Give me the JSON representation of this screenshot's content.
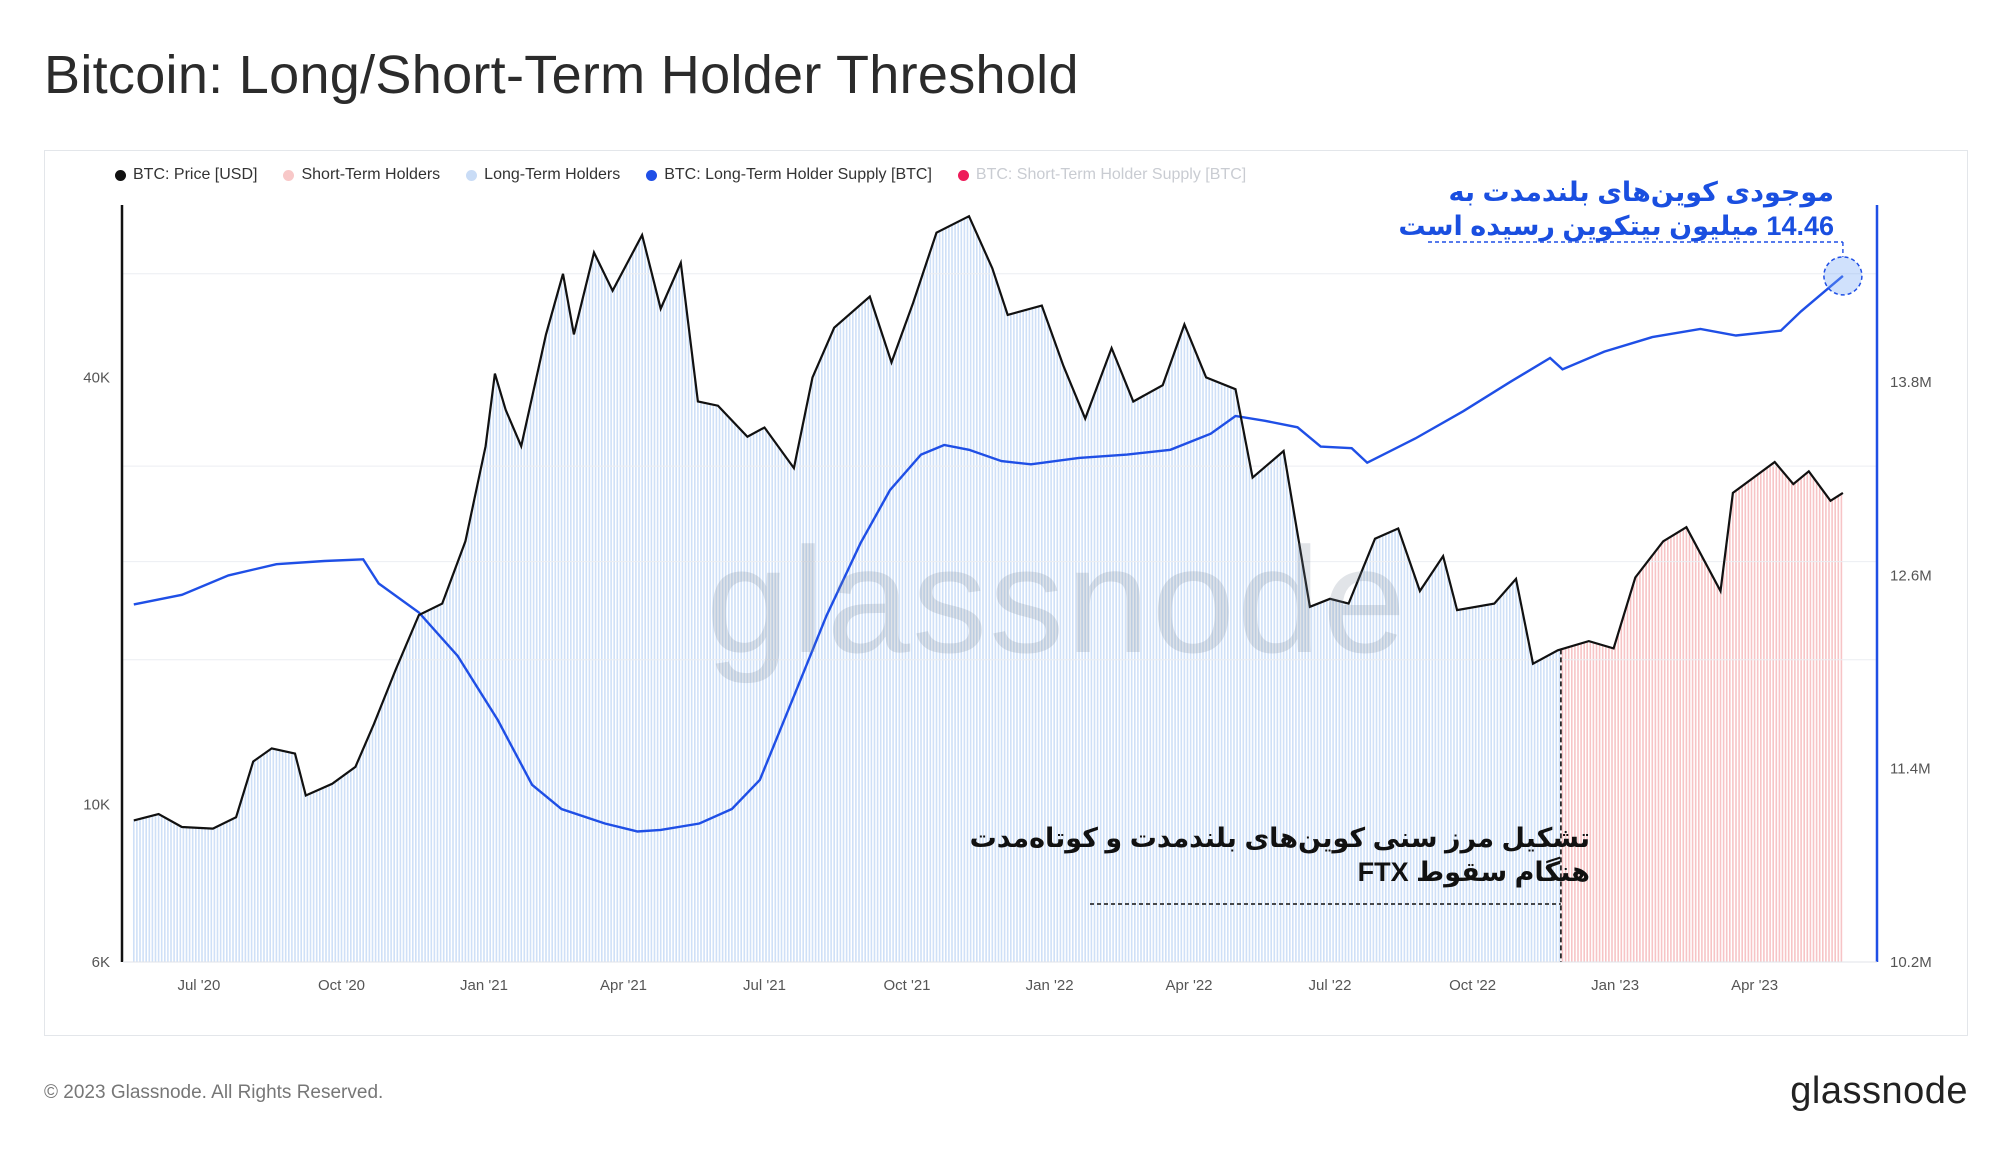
{
  "title": "Bitcoin: Long/Short-Term Holder Threshold",
  "legend": [
    {
      "label": "BTC: Price [USD]",
      "color": "#111111",
      "muted": false
    },
    {
      "label": "Short-Term Holders",
      "color": "#f8c8c8",
      "muted": false
    },
    {
      "label": "Long-Term Holders",
      "color": "#c9dcf6",
      "muted": false
    },
    {
      "label": "BTC: Long-Term Holder Supply [BTC]",
      "color": "#1f4fe6",
      "muted": false
    },
    {
      "label": "BTC: Short-Term Holder Supply [BTC]",
      "color": "#ee1c5a",
      "muted": true
    }
  ],
  "annotations": {
    "ltm_line1": "موجودی کوین‌های بلندمدت به",
    "ltm_line2": "14.46 میلیون بیتکوین رسیده است",
    "ftx_line1": "تشکیل مرز سنی کوین‌های بلندمدت و کوتاه‌مدت",
    "ftx_line2": "هنگام سقوط FTX"
  },
  "watermark": "glassnode",
  "footer": {
    "copyright": "© 2023 Glassnode. All Rights Reserved.",
    "logo": "glassnode"
  },
  "chart_data": {
    "type": "line",
    "x_tick_labels": [
      "Jul '20",
      "Oct '20",
      "Jan '21",
      "Apr '21",
      "Jul '21",
      "Oct '21",
      "Jan '22",
      "Apr '22",
      "Jul '22",
      "Oct '22",
      "Jan '23",
      "Apr '23"
    ],
    "y_left": {
      "scale": "log",
      "range": [
        6000,
        70000
      ],
      "ticks": [
        {
          "value": 6000,
          "label": "6K"
        },
        {
          "value": 10000,
          "label": "10K"
        },
        {
          "value": 40000,
          "label": "40K"
        }
      ]
    },
    "y_right": {
      "scale": "linear",
      "range": [
        10200000,
        14900000
      ],
      "ticks": [
        {
          "value": 10200000,
          "label": "10.2M"
        },
        {
          "value": 11400000,
          "label": "11.4M"
        },
        {
          "value": 12600000,
          "label": "12.6M"
        },
        {
          "value": 13800000,
          "label": "13.8M"
        }
      ]
    },
    "threshold_date": "2022-11-27",
    "series": [
      {
        "name": "BTC: Price [USD]",
        "axis": "left",
        "color": "#111111",
        "points": [
          [
            "2020-05-20",
            9500
          ],
          [
            "2020-06-05",
            9700
          ],
          [
            "2020-06-20",
            9300
          ],
          [
            "2020-07-10",
            9250
          ],
          [
            "2020-07-25",
            9600
          ],
          [
            "2020-08-05",
            11500
          ],
          [
            "2020-08-17",
            12000
          ],
          [
            "2020-09-01",
            11800
          ],
          [
            "2020-09-08",
            10300
          ],
          [
            "2020-09-25",
            10700
          ],
          [
            "2020-10-10",
            11300
          ],
          [
            "2020-10-22",
            13000
          ],
          [
            "2020-11-05",
            15500
          ],
          [
            "2020-11-20",
            18500
          ],
          [
            "2020-12-05",
            19200
          ],
          [
            "2020-12-20",
            23500
          ],
          [
            "2021-01-02",
            32000
          ],
          [
            "2021-01-08",
            40500
          ],
          [
            "2021-01-15",
            36000
          ],
          [
            "2021-01-25",
            32000
          ],
          [
            "2021-02-10",
            46000
          ],
          [
            "2021-02-21",
            56000
          ],
          [
            "2021-02-28",
            46000
          ],
          [
            "2021-03-13",
            60000
          ],
          [
            "2021-03-25",
            53000
          ],
          [
            "2021-04-13",
            63500
          ],
          [
            "2021-04-25",
            50000
          ],
          [
            "2021-05-08",
            58000
          ],
          [
            "2021-05-19",
            37000
          ],
          [
            "2021-06-01",
            36500
          ],
          [
            "2021-06-20",
            33000
          ],
          [
            "2021-07-01",
            34000
          ],
          [
            "2021-07-20",
            29800
          ],
          [
            "2021-08-01",
            40000
          ],
          [
            "2021-08-15",
            47000
          ],
          [
            "2021-09-07",
            52000
          ],
          [
            "2021-09-21",
            42000
          ],
          [
            "2021-10-05",
            51000
          ],
          [
            "2021-10-20",
            64000
          ],
          [
            "2021-11-10",
            67500
          ],
          [
            "2021-11-25",
            57000
          ],
          [
            "2021-12-05",
            49000
          ],
          [
            "2021-12-27",
            50500
          ],
          [
            "2022-01-10",
            41500
          ],
          [
            "2022-01-24",
            35000
          ],
          [
            "2022-02-10",
            44000
          ],
          [
            "2022-02-24",
            37000
          ],
          [
            "2022-03-15",
            39000
          ],
          [
            "2022-03-29",
            47500
          ],
          [
            "2022-04-12",
            40000
          ],
          [
            "2022-05-01",
            38500
          ],
          [
            "2022-05-12",
            28900
          ],
          [
            "2022-06-01",
            31500
          ],
          [
            "2022-06-18",
            19000
          ],
          [
            "2022-07-01",
            19500
          ],
          [
            "2022-07-13",
            19200
          ],
          [
            "2022-07-30",
            23700
          ],
          [
            "2022-08-14",
            24500
          ],
          [
            "2022-08-28",
            20000
          ],
          [
            "2022-09-12",
            22400
          ],
          [
            "2022-09-21",
            18800
          ],
          [
            "2022-10-15",
            19200
          ],
          [
            "2022-10-29",
            20800
          ],
          [
            "2022-11-09",
            15800
          ],
          [
            "2022-11-25",
            16500
          ],
          [
            "2022-12-15",
            17000
          ],
          [
            "2022-12-31",
            16600
          ],
          [
            "2023-01-14",
            20900
          ],
          [
            "2023-02-01",
            23500
          ],
          [
            "2023-02-16",
            24600
          ],
          [
            "2023-03-10",
            20000
          ],
          [
            "2023-03-18",
            27500
          ],
          [
            "2023-04-14",
            30400
          ],
          [
            "2023-04-26",
            28300
          ],
          [
            "2023-05-06",
            29500
          ],
          [
            "2023-05-20",
            26800
          ],
          [
            "2023-05-28",
            27500
          ]
        ]
      },
      {
        "name": "BTC: Long-Term Holder Supply [BTC]",
        "axis": "right",
        "color": "#1f4fe6",
        "points": [
          [
            "2020-05-20",
            12420000
          ],
          [
            "2020-06-20",
            12480000
          ],
          [
            "2020-07-20",
            12600000
          ],
          [
            "2020-08-20",
            12670000
          ],
          [
            "2020-09-20",
            12690000
          ],
          [
            "2020-10-15",
            12700000
          ],
          [
            "2020-10-25",
            12550000
          ],
          [
            "2020-11-20",
            12370000
          ],
          [
            "2020-12-15",
            12100000
          ],
          [
            "2021-01-10",
            11700000
          ],
          [
            "2021-02-01",
            11300000
          ],
          [
            "2021-02-20",
            11150000
          ],
          [
            "2021-03-20",
            11060000
          ],
          [
            "2021-04-10",
            11010000
          ],
          [
            "2021-04-25",
            11020000
          ],
          [
            "2021-05-20",
            11060000
          ],
          [
            "2021-06-10",
            11150000
          ],
          [
            "2021-06-28",
            11330000
          ],
          [
            "2021-07-20",
            11850000
          ],
          [
            "2021-08-10",
            12350000
          ],
          [
            "2021-09-01",
            12800000
          ],
          [
            "2021-09-20",
            13130000
          ],
          [
            "2021-10-10",
            13350000
          ],
          [
            "2021-10-25",
            13410000
          ],
          [
            "2021-11-10",
            13380000
          ],
          [
            "2021-12-01",
            13310000
          ],
          [
            "2021-12-20",
            13290000
          ],
          [
            "2022-01-20",
            13330000
          ],
          [
            "2022-02-20",
            13350000
          ],
          [
            "2022-03-20",
            13380000
          ],
          [
            "2022-04-15",
            13480000
          ],
          [
            "2022-05-01",
            13590000
          ],
          [
            "2022-05-20",
            13560000
          ],
          [
            "2022-06-10",
            13520000
          ],
          [
            "2022-06-25",
            13400000
          ],
          [
            "2022-07-15",
            13390000
          ],
          [
            "2022-07-25",
            13300000
          ],
          [
            "2022-08-25",
            13450000
          ],
          [
            "2022-09-25",
            13620000
          ],
          [
            "2022-10-25",
            13800000
          ],
          [
            "2022-11-20",
            13950000
          ],
          [
            "2022-11-28",
            13880000
          ],
          [
            "2022-12-25",
            13990000
          ],
          [
            "2023-01-25",
            14080000
          ],
          [
            "2023-02-25",
            14130000
          ],
          [
            "2023-03-20",
            14090000
          ],
          [
            "2023-04-18",
            14120000
          ],
          [
            "2023-05-01",
            14240000
          ],
          [
            "2023-05-28",
            14460000
          ]
        ]
      }
    ]
  }
}
